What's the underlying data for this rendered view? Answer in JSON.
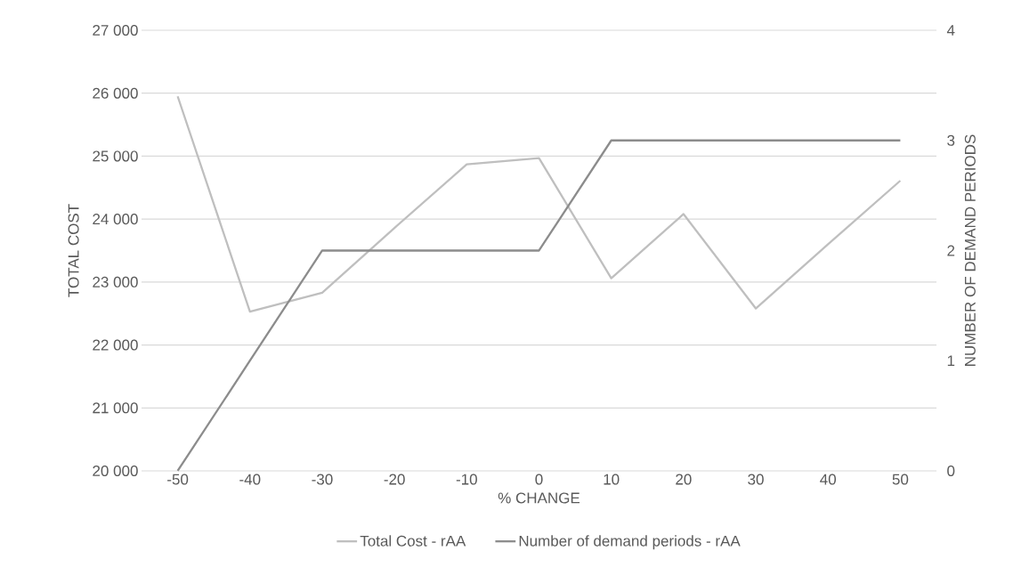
{
  "chart_data": {
    "type": "line",
    "xlabel": "% CHANGE",
    "ylabel": "TOTAL COST",
    "y2label": "NUMBER OF DEMAND PERIODS",
    "categories": [
      "-50",
      "-40",
      "-30",
      "-20",
      "-10",
      "0",
      "10",
      "20",
      "30",
      "40",
      "50"
    ],
    "series": [
      {
        "name": "Total Cost - rAA",
        "color": "#bfbfbf",
        "values": [
          25950,
          22530,
          22830,
          23860,
          24870,
          24970,
          23060,
          24080,
          22580,
          23600,
          24610
        ]
      },
      {
        "name": "Number of demand periods - rAA",
        "color": "#8c8c8c",
        "axis": "y2",
        "values": [
          0,
          1,
          2,
          2,
          2,
          2,
          3,
          3,
          3,
          3,
          3
        ]
      }
    ],
    "ylim": [
      20000,
      27000
    ],
    "yticks": [
      {
        "value": 20000,
        "label": "20 000"
      },
      {
        "value": 21000,
        "label": "21 000"
      },
      {
        "value": 22000,
        "label": "22 000"
      },
      {
        "value": 23000,
        "label": "23 000"
      },
      {
        "value": 24000,
        "label": "24 000"
      },
      {
        "value": 25000,
        "label": "25 000"
      },
      {
        "value": 26000,
        "label": "26 000"
      },
      {
        "value": 27000,
        "label": "27 000"
      }
    ],
    "y2lim": [
      0,
      4
    ],
    "y2ticks": [
      0,
      1,
      2,
      3,
      4
    ],
    "grid": "y",
    "legend": "bottom",
    "line_style": "solid"
  }
}
